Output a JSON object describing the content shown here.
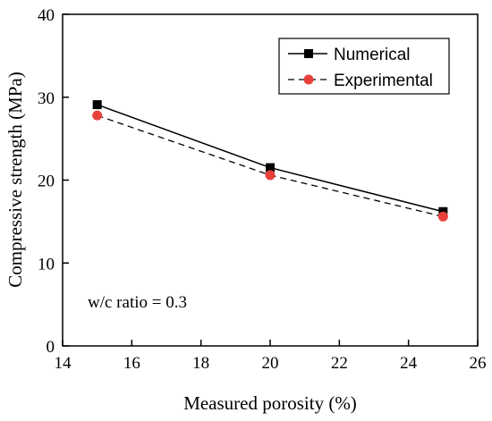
{
  "chart_data": {
    "type": "line",
    "title": "",
    "xlabel": "Measured porosity (%)",
    "ylabel": "Compressive strength (MPa)",
    "xlim": [
      14,
      26
    ],
    "ylim": [
      0,
      40
    ],
    "x_ticks": [
      "14",
      "16",
      "18",
      "20",
      "22",
      "24",
      "26"
    ],
    "y_ticks": [
      "0",
      "10",
      "20",
      "30",
      "40"
    ],
    "x": [
      15,
      20,
      25
    ],
    "series": [
      {
        "name": "Numerical",
        "values": [
          29.1,
          21.5,
          16.2
        ],
        "color": "#000000",
        "line_style": "solid",
        "marker": "square"
      },
      {
        "name": "Experimental",
        "values": [
          27.8,
          20.6,
          15.6
        ],
        "color": "#e8413c",
        "line_color": "#000000",
        "line_style": "dashed",
        "marker": "circle"
      }
    ],
    "legend_position": "top-right",
    "grid": false,
    "annotation": "w/c ratio = 0.3"
  }
}
